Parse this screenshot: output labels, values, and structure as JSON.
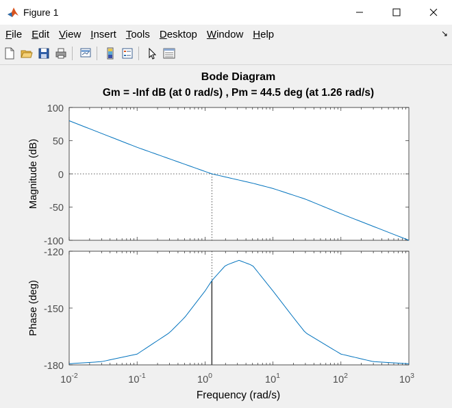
{
  "window": {
    "title": "Figure 1",
    "app_icon": "matlab-icon",
    "controls": [
      "minimize-icon",
      "maximize-icon",
      "close-icon"
    ]
  },
  "menubar": {
    "items": [
      {
        "accel": "F",
        "rest": "ile"
      },
      {
        "accel": "E",
        "rest": "dit"
      },
      {
        "accel": "V",
        "rest": "iew"
      },
      {
        "accel": "I",
        "rest": "nsert"
      },
      {
        "accel": "T",
        "rest": "ools"
      },
      {
        "accel": "D",
        "rest": "esktop"
      },
      {
        "accel": "W",
        "rest": "indow"
      },
      {
        "accel": "H",
        "rest": "elp"
      }
    ],
    "dock_arrow": "↘"
  },
  "toolbar": {
    "icons": [
      "new-figure-icon",
      "open-file-icon",
      "save-icon",
      "print-icon",
      "link-plot-icon",
      "colorbar-icon",
      "legend-icon",
      "edit-plot-icon",
      "property-inspector-icon"
    ]
  },
  "plot": {
    "title": "Bode Diagram",
    "subtitle": "Gm = -Inf dB (at 0 rad/s) ,  Pm = 44.5 deg (at 1.26 rad/s)",
    "magnitude_ylabel": "Magnitude (dB)",
    "phase_ylabel": "Phase (deg)",
    "xlabel": "Frequency  (rad/s)",
    "magnitude_ticks": [
      "100",
      "50",
      "0",
      "-50",
      "-100"
    ],
    "phase_ticks": [
      "-120",
      "-150",
      "-180"
    ],
    "x_tick_base": "10",
    "x_tick_exponents": [
      "-2",
      "-1",
      "0",
      "1",
      "2",
      "3"
    ],
    "line_color": "#0072bd",
    "crossover_color": "#404040"
  },
  "chart_data": {
    "type": "line",
    "title": "Bode Diagram",
    "subtitle": "Gm = -Inf dB (at 0 rad/s) ,  Pm = 44.5 deg (at 1.26 rad/s)",
    "xscale": "log",
    "xlim": [
      0.01,
      1000
    ],
    "xlabel": "Frequency  (rad/s)",
    "gain_margin_db": "-Inf",
    "gain_margin_freq": 0,
    "phase_margin_deg": 44.5,
    "phase_margin_freq": 1.26,
    "panels": [
      {
        "name": "magnitude",
        "ylabel": "Magnitude (dB)",
        "ylim": [
          -100,
          100
        ],
        "x": [
          0.01,
          0.1,
          1.26,
          5,
          10,
          30,
          100,
          1000
        ],
        "y": [
          80,
          40,
          0,
          -14,
          -22,
          -38,
          -60,
          -100
        ]
      },
      {
        "name": "phase",
        "ylabel": "Phase (deg)",
        "ylim": [
          -180,
          -120
        ],
        "x": [
          0.01,
          0.03,
          0.1,
          0.3,
          0.5,
          1,
          1.26,
          2,
          3.16,
          5,
          10,
          20,
          30,
          100,
          300,
          1000
        ],
        "y": [
          -179.4,
          -178.3,
          -174.3,
          -163,
          -155,
          -141,
          -135.5,
          -127.5,
          -124.8,
          -127.5,
          -141,
          -155,
          -163,
          -174.3,
          -178.3,
          -179.4
        ]
      }
    ],
    "grid": false
  }
}
